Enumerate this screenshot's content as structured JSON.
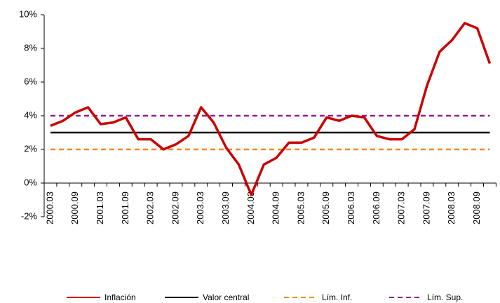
{
  "chart_data": {
    "type": "line",
    "categories": [
      "2000.03",
      null,
      "2000.09",
      null,
      "2001.03",
      null,
      "2001.09",
      null,
      "2002.03",
      null,
      "2002.09",
      null,
      "2003.03",
      null,
      "2003.09",
      null,
      "2004.03",
      null,
      "2004.09",
      null,
      "2005.03",
      null,
      "2005.09",
      null,
      "2006.03",
      null,
      "2006.09",
      null,
      "2007.03",
      null,
      "2007.09",
      null,
      "2008.03",
      null,
      "2008.09",
      null
    ],
    "series": [
      {
        "name": "Inflación",
        "color": "#cc0000",
        "dash": false,
        "values": [
          3.4,
          3.7,
          4.2,
          4.5,
          3.5,
          3.6,
          3.9,
          2.6,
          2.6,
          2.0,
          2.3,
          2.8,
          4.5,
          3.6,
          2.1,
          1.1,
          -0.7,
          1.1,
          1.5,
          2.4,
          2.4,
          2.7,
          3.9,
          3.7,
          4.0,
          3.9,
          2.8,
          2.6,
          2.6,
          3.2,
          5.8,
          7.8,
          8.5,
          9.5,
          9.2,
          7.1
        ]
      },
      {
        "name": "Valor central",
        "color": "#000000",
        "dash": false,
        "values": [
          3,
          3,
          3,
          3,
          3,
          3,
          3,
          3,
          3,
          3,
          3,
          3,
          3,
          3,
          3,
          3,
          3,
          3,
          3,
          3,
          3,
          3,
          3,
          3,
          3,
          3,
          3,
          3,
          3,
          3,
          3,
          3,
          3,
          3,
          3,
          3
        ]
      },
      {
        "name": "Lím. Inf.",
        "color": "#f08a24",
        "dash": true,
        "values": [
          2,
          2,
          2,
          2,
          2,
          2,
          2,
          2,
          2,
          2,
          2,
          2,
          2,
          2,
          2,
          2,
          2,
          2,
          2,
          2,
          2,
          2,
          2,
          2,
          2,
          2,
          2,
          2,
          2,
          2,
          2,
          2,
          2,
          2,
          2,
          2
        ]
      },
      {
        "name": "Lím. Sup.",
        "color": "#8e1f8e",
        "dash": true,
        "values": [
          4,
          4,
          4,
          4,
          4,
          4,
          4,
          4,
          4,
          4,
          4,
          4,
          4,
          4,
          4,
          4,
          4,
          4,
          4,
          4,
          4,
          4,
          4,
          4,
          4,
          4,
          4,
          4,
          4,
          4,
          4,
          4,
          4,
          4,
          4,
          4
        ]
      }
    ],
    "ylim": [
      -2,
      10
    ],
    "yticks": [
      {
        "value": -2,
        "label": "-2%"
      },
      {
        "value": 0,
        "label": "0%"
      },
      {
        "value": 2,
        "label": "2%"
      },
      {
        "value": 4,
        "label": "4%"
      },
      {
        "value": 6,
        "label": "6%"
      },
      {
        "value": 8,
        "label": "8%"
      },
      {
        "value": 10,
        "label": "10%"
      }
    ],
    "grid": false,
    "legend": "bottom"
  }
}
